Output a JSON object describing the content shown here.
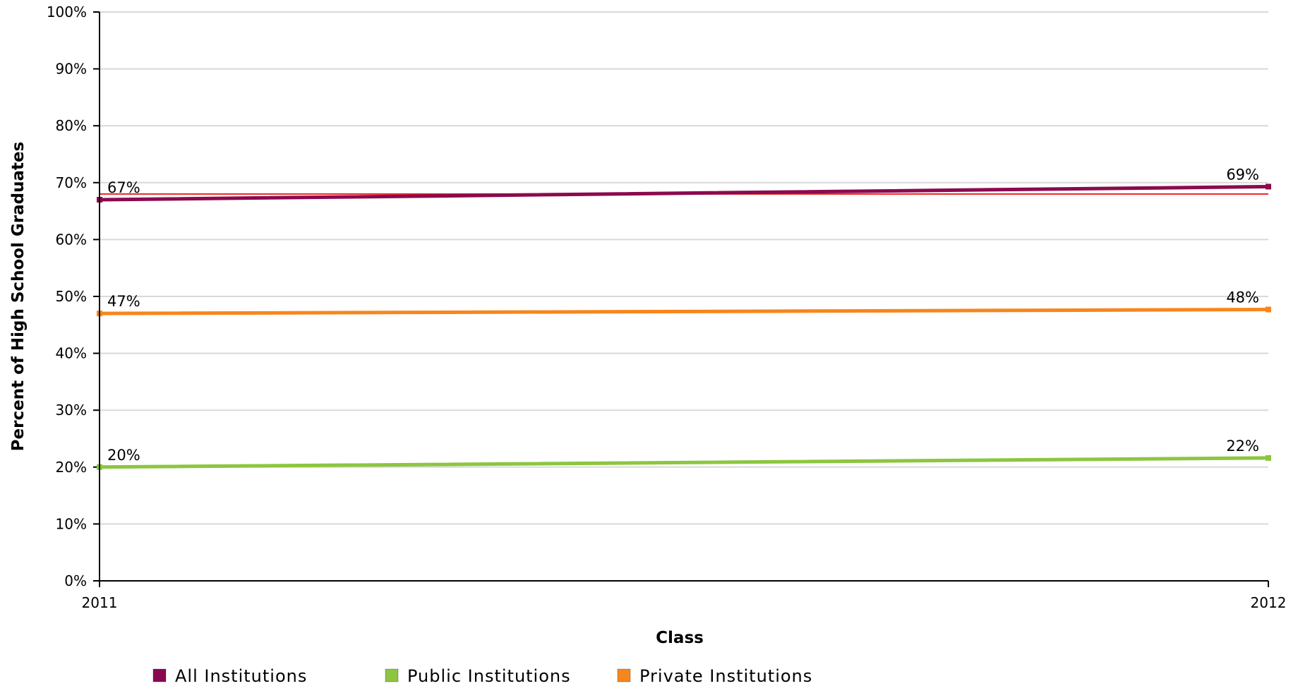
{
  "chart_data": {
    "type": "line",
    "xlabel": "Class",
    "ylabel": "Percent of High School Graduates",
    "x": [
      "2011",
      "2012"
    ],
    "ylim": [
      0,
      100
    ],
    "yticks": [
      "0%",
      "10%",
      "20%",
      "30%",
      "40%",
      "50%",
      "60%",
      "70%",
      "80%",
      "90%",
      "100%"
    ],
    "grid": true,
    "legend_position": "bottom",
    "series": [
      {
        "name": "All Institutions",
        "values": [
          67,
          69.3
        ],
        "labels": [
          "67%",
          "69%"
        ],
        "color": "#8b0a4e"
      },
      {
        "name": "Public Institutions",
        "values": [
          20,
          21.6
        ],
        "labels": [
          "20%",
          "22%"
        ],
        "color": "#8cc63f"
      },
      {
        "name": "Private Institutions",
        "values": [
          47,
          47.7
        ],
        "labels": [
          "47%",
          "48%"
        ],
        "color": "#f7861d"
      }
    ],
    "reference_line": {
      "value": 68,
      "color": "#ee2222"
    },
    "colors": {
      "grid": "#d9d9d9",
      "axis": "#000000"
    }
  }
}
